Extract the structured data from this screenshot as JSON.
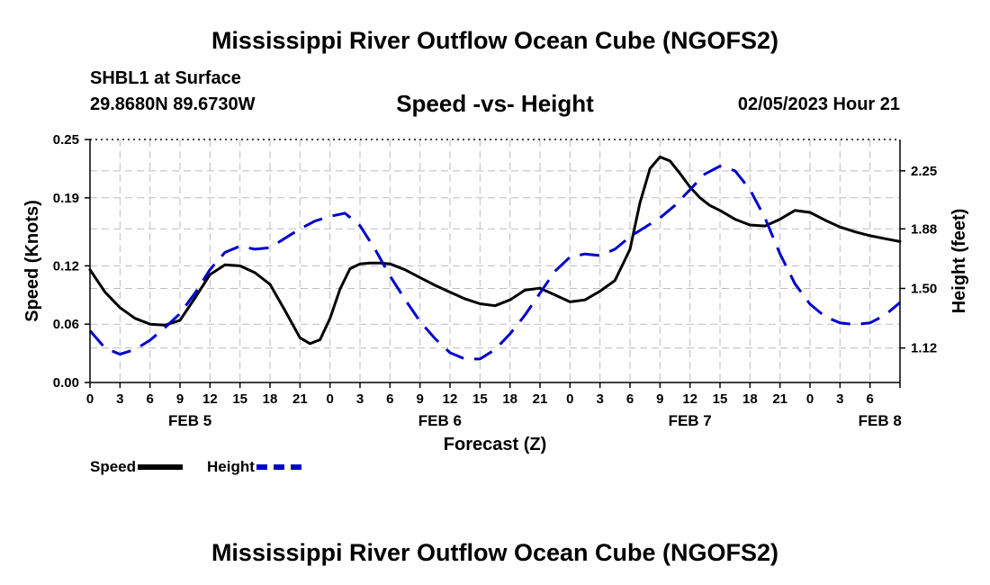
{
  "header": {
    "title": "Mississippi River Outflow Ocean Cube (NGOFS2)",
    "station": "SHBL1 at Surface",
    "coords": "29.8680N  89.6730W",
    "subtitle": "Speed -vs- Height",
    "datetime": "02/05/2023 Hour 21"
  },
  "footer": {
    "title": "Mississippi River Outflow Ocean Cube (NGOFS2)"
  },
  "legend": {
    "speed_label": "Speed",
    "height_label": "Height"
  },
  "chart_data": {
    "type": "line",
    "title": "Speed -vs- Height",
    "xlabel": "Forecast (Z)",
    "ylabel": "Speed (Knots)",
    "y2label": "Height (feet)",
    "xlim": [
      0,
      81
    ],
    "ylim": [
      0,
      0.25
    ],
    "y2lim": [
      0.9,
      2.45
    ],
    "grid": true,
    "x_ticks": [
      0,
      3,
      6,
      9,
      12,
      15,
      18,
      21,
      24,
      27,
      30,
      33,
      36,
      39,
      42,
      45,
      48,
      51,
      54,
      57,
      60,
      63,
      66,
      69,
      72,
      75,
      78,
      81
    ],
    "x_tick_labels": [
      "0",
      "3",
      "6",
      "9",
      "12",
      "15",
      "18",
      "21",
      "0",
      "3",
      "6",
      "9",
      "12",
      "15",
      "18",
      "21",
      "0",
      "3",
      "6",
      "9",
      "12",
      "15",
      "18",
      "21",
      "0",
      "3",
      "6"
    ],
    "x_tick_label_hours": [
      0,
      3,
      6,
      9,
      12,
      15,
      18,
      21,
      24,
      27,
      30,
      33,
      36,
      39,
      42,
      45,
      48,
      51,
      54,
      57,
      60,
      63,
      66,
      69,
      72,
      75,
      78
    ],
    "day_labels": [
      {
        "label": "FEB 5",
        "x": 10
      },
      {
        "label": "FEB 6",
        "x": 35
      },
      {
        "label": "FEB 7",
        "x": 60
      },
      {
        "label": "FEB 8",
        "x": 79
      }
    ],
    "y_ticks": [
      0.0,
      0.06,
      0.12,
      0.19,
      0.25
    ],
    "y_tick_labels": [
      "0.00",
      "0.06",
      "0.12",
      "0.19",
      "0.25"
    ],
    "y2_ticks": [
      1.12,
      1.5,
      1.88,
      2.25
    ],
    "y2_tick_labels": [
      "1.12",
      "1.50",
      "1.88",
      "2.25"
    ],
    "series": [
      {
        "name": "Speed",
        "axis": "left",
        "color": "#000000",
        "dashed": false,
        "x": [
          0,
          1.5,
          3,
          4.5,
          6,
          7.5,
          9,
          10.5,
          12,
          13.5,
          15,
          16.5,
          18,
          19.5,
          21,
          22,
          23,
          24,
          25,
          26,
          27,
          28,
          29,
          30,
          31.5,
          33,
          34.5,
          36,
          37.5,
          39,
          40.5,
          42,
          43.5,
          45,
          46.5,
          48,
          49.5,
          51,
          52.5,
          54,
          55,
          56,
          57,
          58,
          59,
          60,
          61,
          62,
          63,
          64.5,
          66,
          67.5,
          69,
          70.5,
          72,
          73.5,
          75,
          76.5,
          78,
          79.5,
          81
        ],
        "values": [
          0.116,
          0.093,
          0.077,
          0.066,
          0.06,
          0.059,
          0.064,
          0.087,
          0.111,
          0.121,
          0.12,
          0.113,
          0.101,
          0.074,
          0.046,
          0.04,
          0.044,
          0.066,
          0.096,
          0.117,
          0.122,
          0.123,
          0.123,
          0.122,
          0.116,
          0.108,
          0.1,
          0.093,
          0.086,
          0.081,
          0.079,
          0.085,
          0.095,
          0.097,
          0.09,
          0.083,
          0.085,
          0.094,
          0.105,
          0.137,
          0.185,
          0.22,
          0.232,
          0.228,
          0.215,
          0.201,
          0.19,
          0.182,
          0.177,
          0.168,
          0.162,
          0.161,
          0.168,
          0.177,
          0.175,
          0.167,
          0.16,
          0.155,
          0.151,
          0.148,
          0.145
        ]
      },
      {
        "name": "Height",
        "axis": "right",
        "color": "#0000cc",
        "dashed": true,
        "x": [
          0,
          1.5,
          3,
          4.5,
          6,
          7.5,
          9,
          10.5,
          12,
          13.5,
          15,
          16.5,
          18,
          19.5,
          21,
          22.5,
          24,
          25.5,
          27,
          28.5,
          30,
          31.5,
          33,
          34.5,
          36,
          37.5,
          39,
          40.5,
          42,
          43.5,
          45,
          46.5,
          48,
          49.5,
          51,
          52.5,
          54,
          55.5,
          57,
          58.5,
          60,
          61.5,
          63,
          64.5,
          66,
          67.5,
          69,
          70.5,
          72,
          73.5,
          75,
          76.5,
          78,
          79.5,
          81
        ],
        "values": [
          1.23,
          1.12,
          1.08,
          1.11,
          1.17,
          1.25,
          1.34,
          1.47,
          1.62,
          1.73,
          1.77,
          1.75,
          1.76,
          1.82,
          1.88,
          1.93,
          1.96,
          1.98,
          1.9,
          1.75,
          1.58,
          1.43,
          1.29,
          1.18,
          1.09,
          1.05,
          1.05,
          1.11,
          1.21,
          1.33,
          1.47,
          1.61,
          1.7,
          1.72,
          1.71,
          1.75,
          1.83,
          1.89,
          1.95,
          2.03,
          2.13,
          2.23,
          2.28,
          2.25,
          2.13,
          1.95,
          1.72,
          1.53,
          1.4,
          1.32,
          1.28,
          1.27,
          1.28,
          1.33,
          1.41
        ]
      }
    ]
  }
}
